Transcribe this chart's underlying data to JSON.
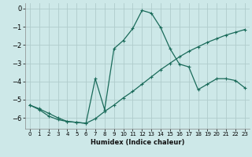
{
  "xlabel": "Humidex (Indice chaleur)",
  "background_color": "#cde8e8",
  "grid_color": "#b0cccc",
  "line_color": "#1a6b5a",
  "xlim": [
    -0.5,
    23.5
  ],
  "ylim": [
    -6.6,
    0.3
  ],
  "x_ticks": [
    0,
    1,
    2,
    3,
    4,
    5,
    6,
    7,
    8,
    9,
    10,
    11,
    12,
    13,
    14,
    15,
    16,
    17,
    18,
    19,
    20,
    21,
    22,
    23
  ],
  "y_ticks": [
    0,
    -1,
    -2,
    -3,
    -4,
    -5,
    -6
  ],
  "series1_x": [
    0,
    1,
    2,
    3,
    4,
    5,
    6,
    7,
    8,
    9,
    10,
    11,
    12,
    13,
    14,
    15,
    16,
    17,
    18,
    19,
    20,
    21,
    22,
    23
  ],
  "series1_y": [
    -5.3,
    -5.5,
    -5.75,
    -6.0,
    -6.2,
    -6.25,
    -6.3,
    -6.05,
    -5.65,
    -5.3,
    -4.9,
    -4.55,
    -4.15,
    -3.75,
    -3.35,
    -3.0,
    -2.65,
    -2.35,
    -2.1,
    -1.85,
    -1.65,
    -1.45,
    -1.3,
    -1.15
  ],
  "series2_x": [
    0,
    1,
    2,
    3,
    4,
    5,
    6,
    7,
    8,
    9,
    10,
    11,
    12,
    13,
    14,
    15,
    16,
    17,
    18,
    19,
    20,
    21,
    22,
    23
  ],
  "series2_y": [
    -5.3,
    -5.55,
    -5.9,
    -6.1,
    -6.2,
    -6.25,
    -6.3,
    -3.85,
    -5.55,
    -2.2,
    -1.75,
    -1.1,
    -0.1,
    -0.25,
    -1.05,
    -2.2,
    -3.05,
    -3.2,
    -4.45,
    -4.15,
    -3.85,
    -3.85,
    -3.95,
    -4.35
  ]
}
